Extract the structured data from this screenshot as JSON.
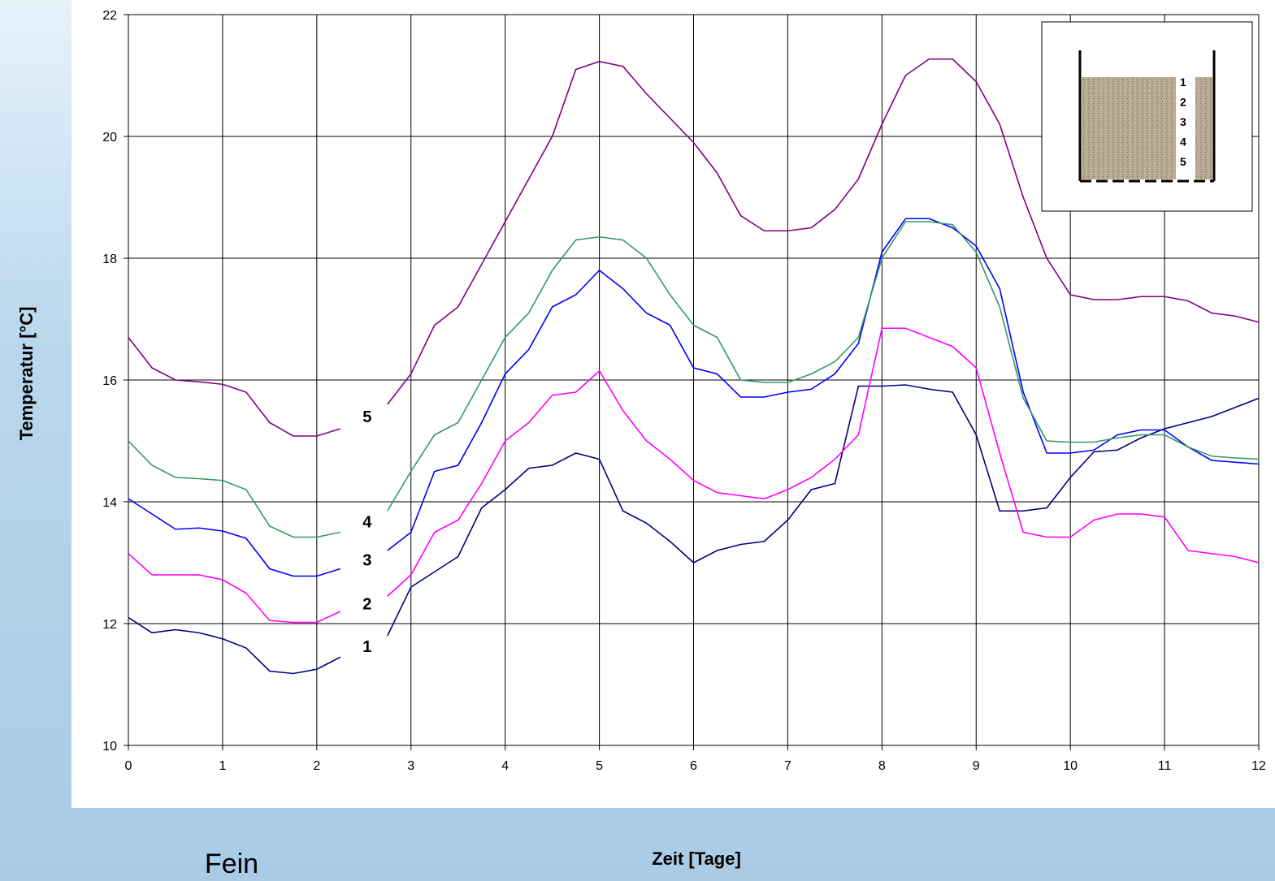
{
  "chart_data": {
    "type": "line",
    "x_label": "Zeit [Tage]",
    "y_label": "Temperatur [°C]",
    "caption": "Fein",
    "xlim": [
      0,
      12
    ],
    "ylim": [
      10,
      22
    ],
    "xticks": [
      0,
      1,
      2,
      3,
      4,
      5,
      6,
      7,
      8,
      9,
      10,
      11,
      12
    ],
    "yticks": [
      10,
      12,
      14,
      16,
      18,
      20,
      22
    ],
    "grid": true,
    "x": [
      0,
      0.25,
      0.5,
      0.75,
      1,
      1.25,
      1.5,
      1.75,
      2,
      2.25,
      2.5,
      2.75,
      3,
      3.25,
      3.5,
      3.75,
      4,
      4.25,
      4.5,
      4.75,
      5,
      5.25,
      5.5,
      5.75,
      6,
      6.25,
      6.5,
      6.75,
      7,
      7.25,
      7.5,
      7.75,
      8,
      8.25,
      8.5,
      8.75,
      9,
      9.25,
      9.5,
      9.75,
      10,
      10.25,
      10.5,
      10.75,
      11,
      11.25,
      11.5,
      11.75,
      12
    ],
    "series": [
      {
        "name": "1",
        "color": "#000080",
        "values": [
          12.1,
          11.85,
          11.9,
          11.85,
          11.75,
          11.6,
          11.22,
          11.18,
          11.25,
          11.45,
          null,
          11.8,
          12.6,
          12.85,
          13.1,
          13.9,
          14.2,
          14.55,
          14.6,
          14.8,
          14.7,
          13.85,
          13.65,
          13.35,
          13.0,
          13.2,
          13.3,
          13.35,
          13.7,
          14.2,
          14.3,
          15.9,
          15.9,
          15.92,
          15.85,
          15.8,
          15.1,
          13.85,
          13.85,
          13.9,
          14.4,
          14.82,
          14.85,
          15.05,
          15.2,
          15.3,
          15.4,
          15.55,
          15.7
        ]
      },
      {
        "name": "2",
        "color": "#ff00ff",
        "values": [
          13.15,
          12.8,
          12.8,
          12.8,
          12.72,
          12.5,
          12.05,
          12.02,
          12.02,
          12.2,
          null,
          12.45,
          12.8,
          13.5,
          13.7,
          14.3,
          15.0,
          15.3,
          15.75,
          15.8,
          16.15,
          15.5,
          15.0,
          14.7,
          14.35,
          14.15,
          14.1,
          14.05,
          14.2,
          14.4,
          14.7,
          15.1,
          16.85,
          16.85,
          16.7,
          16.55,
          16.2,
          14.8,
          13.5,
          13.42,
          13.42,
          13.7,
          13.8,
          13.8,
          13.75,
          13.2,
          13.15,
          13.1,
          13.0
        ]
      },
      {
        "name": "3",
        "color": "#0000ff",
        "values": [
          14.05,
          13.8,
          13.55,
          13.57,
          13.52,
          13.4,
          12.9,
          12.78,
          12.78,
          12.9,
          null,
          13.2,
          13.5,
          14.5,
          14.6,
          15.3,
          16.1,
          16.5,
          17.2,
          17.4,
          17.8,
          17.5,
          17.1,
          16.9,
          16.2,
          16.1,
          15.72,
          15.72,
          15.8,
          15.85,
          16.1,
          16.6,
          18.1,
          18.65,
          18.65,
          18.5,
          18.2,
          17.5,
          15.8,
          14.8,
          14.8,
          14.85,
          15.1,
          15.18,
          15.18,
          14.9,
          14.68,
          14.65,
          14.62
        ]
      },
      {
        "name": "4",
        "color": "#339966",
        "values": [
          15.0,
          14.6,
          14.4,
          14.38,
          14.35,
          14.2,
          13.6,
          13.42,
          13.42,
          13.5,
          null,
          13.85,
          14.5,
          15.1,
          15.3,
          16.0,
          16.7,
          17.1,
          17.8,
          18.3,
          18.35,
          18.3,
          18.0,
          17.4,
          16.9,
          16.7,
          16.0,
          15.96,
          15.96,
          16.1,
          16.3,
          16.7,
          18.0,
          18.6,
          18.6,
          18.55,
          18.1,
          17.2,
          15.7,
          15.0,
          14.98,
          14.98,
          15.05,
          15.1,
          15.1,
          14.9,
          14.75,
          14.72,
          14.7
        ]
      },
      {
        "name": "5",
        "color": "#800080",
        "values": [
          16.7,
          16.2,
          16.0,
          15.97,
          15.93,
          15.8,
          15.3,
          15.08,
          15.08,
          15.2,
          null,
          15.6,
          16.1,
          16.9,
          17.2,
          17.9,
          18.6,
          19.3,
          20.0,
          21.1,
          21.23,
          21.15,
          20.7,
          20.3,
          19.9,
          19.4,
          18.7,
          18.45,
          18.45,
          18.5,
          18.8,
          19.3,
          20.2,
          21.0,
          21.27,
          21.27,
          20.9,
          20.2,
          19.0,
          18.0,
          17.4,
          17.32,
          17.32,
          17.37,
          17.37,
          17.3,
          17.1,
          17.05,
          16.95
        ]
      }
    ]
  }
}
